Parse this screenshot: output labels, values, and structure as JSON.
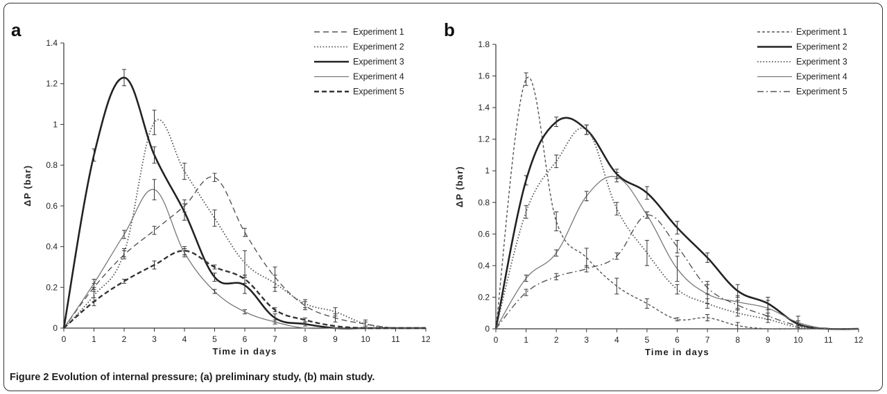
{
  "caption": {
    "label": "Figure 2",
    "text": "Evolution of internal pressure; (a) preliminary study, (b) main study."
  },
  "chart_data": [
    {
      "type": "line",
      "panel_label": "a",
      "title": "",
      "xlabel": "Time in days",
      "ylabel": "ΔP (bar)",
      "xlim": [
        0,
        12
      ],
      "ylim": [
        0,
        1.4
      ],
      "xticks": [
        0,
        1,
        2,
        3,
        4,
        5,
        6,
        7,
        8,
        9,
        10,
        11,
        12
      ],
      "yticks": [
        0,
        0.2,
        0.4,
        0.6,
        0.8,
        1,
        1.2,
        1.4
      ],
      "ytick_labels": [
        "0",
        "0.2",
        "0.4",
        "0.6",
        "0.8",
        "1",
        "1.2",
        "1.4"
      ],
      "grid": false,
      "legend": "top-right",
      "series": [
        {
          "name": "Experiment 1",
          "style": "dashed",
          "color": "#555555",
          "x": [
            0,
            1,
            2,
            3,
            4,
            5,
            6,
            7,
            8,
            9,
            10,
            11,
            12
          ],
          "y": [
            0,
            0.2,
            0.36,
            0.48,
            0.6,
            0.74,
            0.47,
            0.25,
            0.11,
            0.05,
            0.02,
            0.0,
            0.0
          ],
          "err": [
            0,
            0.02,
            0.02,
            0.02,
            0.03,
            0.02,
            0.02,
            0.05,
            0.02,
            0.02,
            0.02,
            0,
            0
          ]
        },
        {
          "name": "Experiment 2",
          "style": "dotted",
          "color": "#555555",
          "x": [
            0,
            1,
            2,
            3,
            4,
            5,
            6,
            7,
            8,
            9,
            10,
            11,
            12
          ],
          "y": [
            0,
            0.16,
            0.37,
            1.01,
            0.77,
            0.54,
            0.32,
            0.22,
            0.12,
            0.08,
            0.02,
            0.0,
            0.0
          ],
          "err": [
            0,
            0.03,
            0.02,
            0.06,
            0.04,
            0.04,
            0.06,
            0.04,
            0.02,
            0.02,
            0.01,
            0,
            0
          ]
        },
        {
          "name": "Experiment 3",
          "style": "solid-thick",
          "color": "#222222",
          "x": [
            0,
            1,
            2,
            3,
            4,
            5,
            6,
            7,
            8,
            9,
            10,
            11,
            12
          ],
          "y": [
            0,
            0.85,
            1.23,
            0.85,
            0.57,
            0.25,
            0.21,
            0.05,
            0.02,
            0.0,
            0.0,
            0.0,
            0.0
          ],
          "err": [
            0,
            0.03,
            0.04,
            0.04,
            0.04,
            0.02,
            0.04,
            0.02,
            0.01,
            0,
            0,
            0,
            0
          ]
        },
        {
          "name": "Experiment 4",
          "style": "solid-thin",
          "color": "#777777",
          "x": [
            0,
            1,
            2,
            3,
            4,
            5,
            6,
            7,
            8,
            9,
            10,
            11,
            12
          ],
          "y": [
            0,
            0.22,
            0.46,
            0.68,
            0.37,
            0.18,
            0.08,
            0.03,
            0.0,
            0.0,
            0.0,
            0.0,
            0.0
          ],
          "err": [
            0,
            0.02,
            0.02,
            0.05,
            0.02,
            0.01,
            0.01,
            0.01,
            0,
            0,
            0,
            0,
            0
          ]
        },
        {
          "name": "Experiment 5",
          "style": "dashed-thick",
          "color": "#333333",
          "x": [
            0,
            1,
            2,
            3,
            4,
            5,
            6,
            7,
            8,
            9,
            10,
            11,
            12
          ],
          "y": [
            0,
            0.13,
            0.23,
            0.31,
            0.38,
            0.3,
            0.24,
            0.09,
            0.04,
            0.01,
            0.0,
            0.0,
            0.0
          ],
          "err": [
            0,
            0.02,
            0.01,
            0.02,
            0.02,
            0.01,
            0.02,
            0.01,
            0.01,
            0,
            0,
            0,
            0
          ]
        }
      ]
    },
    {
      "type": "line",
      "panel_label": "b",
      "title": "",
      "xlabel": "Time in days",
      "ylabel": "ΔP (bar)",
      "xlim": [
        0,
        12
      ],
      "ylim": [
        0,
        1.8
      ],
      "xticks": [
        0,
        1,
        2,
        3,
        4,
        5,
        6,
        7,
        8,
        9,
        10,
        11,
        12
      ],
      "yticks": [
        0,
        0.2,
        0.4,
        0.6,
        0.8,
        1,
        1.2,
        1.4,
        1.6,
        1.8
      ],
      "ytick_labels": [
        "0",
        "0.2",
        "0.4",
        "0.6",
        "0.8",
        "1",
        "1.2",
        "1.4",
        "1.6",
        "1.8"
      ],
      "grid": false,
      "legend": "top-right",
      "series": [
        {
          "name": "Experiment 1",
          "style": "dashed-short",
          "color": "#555555",
          "x": [
            0,
            1,
            2,
            3,
            4,
            5,
            6,
            7,
            8,
            9,
            10,
            11,
            12
          ],
          "y": [
            0,
            1.58,
            0.68,
            0.45,
            0.27,
            0.16,
            0.06,
            0.07,
            0.02,
            0.0,
            0.0,
            0.0,
            0.0
          ],
          "err": [
            0,
            0.04,
            0.06,
            0.06,
            0.05,
            0.03,
            0.01,
            0.02,
            0.02,
            0,
            0,
            0,
            0
          ]
        },
        {
          "name": "Experiment 2",
          "style": "solid-thick",
          "color": "#222222",
          "x": [
            0,
            1,
            2,
            3,
            4,
            5,
            6,
            7,
            8,
            9,
            10,
            11,
            12
          ],
          "y": [
            0,
            0.94,
            1.31,
            1.26,
            0.98,
            0.86,
            0.64,
            0.45,
            0.24,
            0.16,
            0.03,
            0.0,
            0.0
          ],
          "err": [
            0,
            0.03,
            0.03,
            0.03,
            0.03,
            0.04,
            0.04,
            0.03,
            0.04,
            0.04,
            0.02,
            0,
            0
          ]
        },
        {
          "name": "Experiment 3",
          "style": "dotted",
          "color": "#555555",
          "x": [
            0,
            1,
            2,
            3,
            4,
            5,
            6,
            7,
            8,
            9,
            10,
            11,
            12
          ],
          "y": [
            0,
            0.74,
            1.06,
            1.26,
            0.76,
            0.48,
            0.25,
            0.16,
            0.1,
            0.06,
            0.01,
            0.0,
            0.0
          ],
          "err": [
            0,
            0.04,
            0.04,
            0.03,
            0.04,
            0.08,
            0.03,
            0.03,
            0.02,
            0.02,
            0.01,
            0,
            0
          ]
        },
        {
          "name": "Experiment 4",
          "style": "solid-thin",
          "color": "#777777",
          "x": [
            0,
            1,
            2,
            3,
            4,
            5,
            6,
            7,
            8,
            9,
            10,
            11,
            12
          ],
          "y": [
            0,
            0.32,
            0.48,
            0.84,
            0.96,
            0.72,
            0.38,
            0.22,
            0.17,
            0.13,
            0.04,
            0.0,
            0.0
          ],
          "err": [
            0,
            0.02,
            0.02,
            0.03,
            0.03,
            0.02,
            0.08,
            0.06,
            0.04,
            0.05,
            0.04,
            0,
            0
          ]
        },
        {
          "name": "Experiment 5",
          "style": "dash-dot",
          "color": "#555555",
          "x": [
            0,
            1,
            2,
            3,
            4,
            5,
            6,
            7,
            8,
            9,
            10,
            11,
            12
          ],
          "y": [
            0,
            0.23,
            0.33,
            0.38,
            0.46,
            0.72,
            0.52,
            0.26,
            0.15,
            0.08,
            0.02,
            0.0,
            0.0
          ],
          "err": [
            0,
            0.02,
            0.02,
            0.02,
            0.02,
            0.02,
            0.04,
            0.04,
            0.03,
            0.02,
            0.01,
            0,
            0
          ]
        }
      ]
    }
  ]
}
